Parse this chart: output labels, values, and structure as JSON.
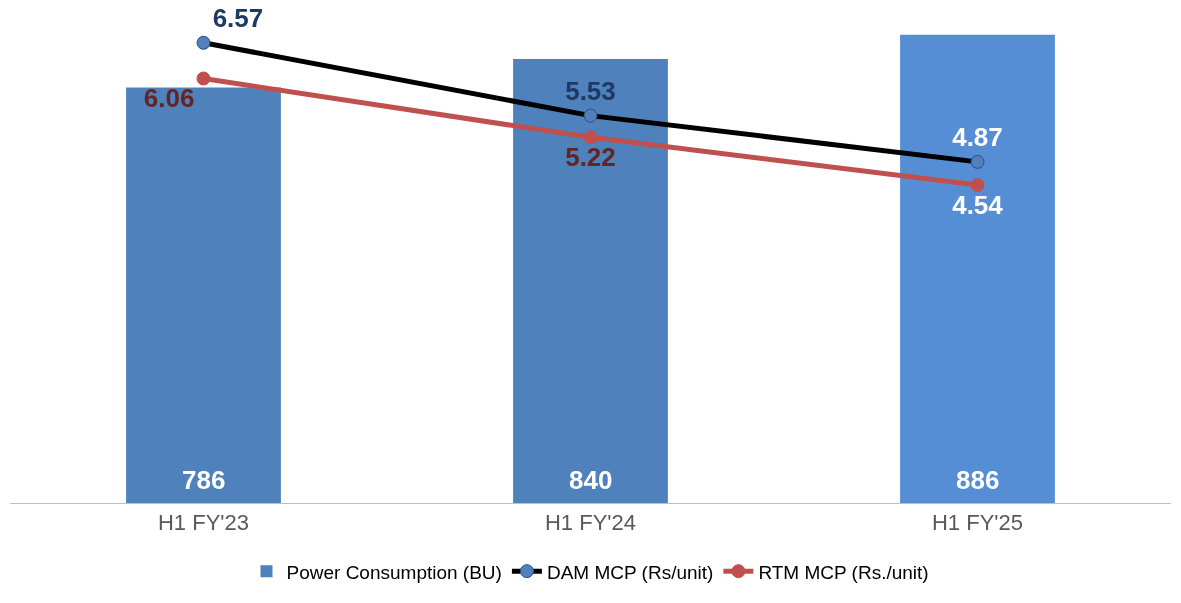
{
  "chart_data": {
    "type": "bar",
    "categories": [
      "H1 FY'23",
      "H1 FY'24",
      "H1 FY'25"
    ],
    "series": [
      {
        "name": "Power Consumption (BU)",
        "colors": [
          "#4f81bd",
          "#4f81bd",
          "#558ed5"
        ],
        "values": [
          786,
          840,
          886
        ]
      },
      {
        "name": "DAM MCP (Rs/unit)",
        "type": "line",
        "axis": "y2",
        "color": "#000000",
        "values": [
          6.57,
          5.53,
          4.87
        ]
      },
      {
        "name": "RTM MCP (Rs./unit)",
        "type": "line",
        "axis": "y2",
        "color": "#c0504d",
        "values": [
          6.06,
          5.22,
          4.54
        ]
      }
    ],
    "tick_labels": "x",
    "data_labels": true,
    "legend": "bottom",
    "grid": false,
    "marker": "circle",
    "line_style": "solid"
  }
}
